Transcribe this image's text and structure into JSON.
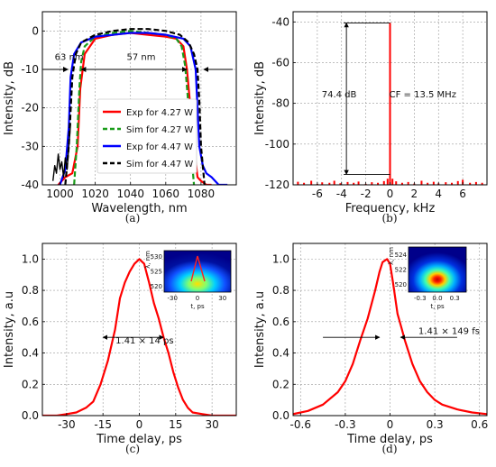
{
  "chart_data": [
    {
      "panel_label": "(a)",
      "type": "line",
      "xlabel": "Wavelength, nm",
      "ylabel": "Intensity, dB",
      "xlim": [
        990,
        1100
      ],
      "ylim": [
        -40,
        5
      ],
      "xticks": [
        1000,
        1020,
        1040,
        1060,
        1080
      ],
      "yticks": [
        -40,
        -30,
        -20,
        -10,
        0
      ],
      "grid": true,
      "legend": "center",
      "series": [
        {
          "name": "Exp for 4.27 W",
          "color": "#ff0000",
          "dash": "solid",
          "x": [
            999,
            1003,
            1007,
            1010,
            1011.5,
            1014,
            1020,
            1030,
            1040,
            1050,
            1060,
            1066,
            1070,
            1072,
            1074,
            1076,
            1078,
            1080,
            1083,
            1086
          ],
          "y": [
            -40,
            -38,
            -37,
            -30,
            -15,
            -6,
            -2,
            -1,
            -0.5,
            -1,
            -1.5,
            -2,
            -4,
            -10,
            -20,
            -30,
            -38,
            -39,
            -40,
            -40
          ]
        },
        {
          "name": "Sim for 4.27 W",
          "color": "#1a9c1a",
          "dash": "dashed",
          "x": [
            1008,
            1009.5,
            1011,
            1012,
            1014,
            1020,
            1030,
            1040,
            1050,
            1060,
            1066,
            1069,
            1071,
            1073,
            1074.5,
            1076
          ],
          "y": [
            -40,
            -30,
            -15,
            -8,
            -4,
            -1.5,
            -0.5,
            0,
            -0.5,
            -1,
            -2,
            -4,
            -9,
            -20,
            -32,
            -40
          ]
        },
        {
          "name": "Exp for 4.47 W",
          "color": "#0000ff",
          "dash": "solid",
          "x": [
            1000,
            1003,
            1005,
            1006,
            1008,
            1012,
            1020,
            1030,
            1040,
            1050,
            1060,
            1070,
            1074,
            1077,
            1078,
            1079,
            1081,
            1083,
            1086,
            1090,
            1095
          ],
          "y": [
            -40,
            -36,
            -25,
            -12,
            -6,
            -3,
            -1.5,
            -1,
            -0.5,
            -0.5,
            -1,
            -2,
            -4,
            -10,
            -20,
            -30,
            -35,
            -37,
            -38,
            -40,
            -40
          ]
        },
        {
          "name": "Sim for 4.47 W",
          "color": "#000000",
          "dash": "dashed",
          "x": [
            1003,
            1005,
            1007,
            1009,
            1012,
            1020,
            1030,
            1040,
            1050,
            1060,
            1068,
            1073,
            1076,
            1078,
            1079,
            1080,
            1082
          ],
          "y": [
            -40,
            -30,
            -12,
            -6,
            -3,
            -1,
            0,
            0.5,
            0.5,
            0,
            -1,
            -3,
            -6,
            -10,
            -18,
            -30,
            -40
          ]
        },
        {
          "name": "",
          "color": "#000000",
          "dash": "noise",
          "x": [
            996,
            997,
            998,
            999,
            1000,
            1001,
            1002,
            1003,
            1004,
            1005,
            1006
          ],
          "y": [
            -39,
            -35,
            -37,
            -32,
            -36,
            -34,
            -38,
            -33,
            -36,
            -30,
            -24
          ]
        }
      ],
      "annotations": [
        {
          "text": "63 nm",
          "x": 997,
          "y": -7.5
        },
        {
          "text": "57 nm",
          "x": 1046,
          "y": -7.5
        }
      ]
    },
    {
      "panel_label": "(b)",
      "type": "line",
      "xlabel": "Frequency, kHz",
      "ylabel": "Intensity, dB",
      "xlim": [
        -8,
        8
      ],
      "ylim": [
        -120,
        -35
      ],
      "xticks": [
        -6,
        -4,
        -2,
        0,
        2,
        4,
        6
      ],
      "yticks": [
        -120,
        -100,
        -80,
        -60,
        -40
      ],
      "grid": true,
      "series": [
        {
          "name": "",
          "color": "#ff0000",
          "dash": "spike",
          "x": [
            -7.6,
            -7.1,
            -6.5,
            -6.0,
            -5.6,
            -5.0,
            -4.6,
            -4.1,
            -3.5,
            -3.0,
            -2.6,
            -2.0,
            -1.5,
            -1.0,
            -0.5,
            -0.2,
            0,
            0.2,
            0.5,
            1.0,
            1.5,
            2.0,
            2.6,
            3.1,
            3.6,
            4.0,
            4.6,
            5.1,
            5.6,
            6.0,
            6.6,
            7.1,
            7.6
          ],
          "y": [
            -118.5,
            -119,
            -118,
            -119.5,
            -118.8,
            -119,
            -118,
            -119.2,
            -118.6,
            -119,
            -118.4,
            -119.5,
            -118.7,
            -119,
            -118.2,
            -117,
            -40.5,
            -117,
            -118.3,
            -119,
            -118.6,
            -119.4,
            -118,
            -119,
            -118.5,
            -119.3,
            -118.7,
            -119,
            -118.2,
            -117.5,
            -119,
            -118.6,
            -119
          ]
        }
      ],
      "annotations": [
        {
          "text": "74.4 dB",
          "x": -4.2,
          "y": -77
        },
        {
          "text": "CF = 13.5 MHz",
          "x": 2.7,
          "y": -77
        }
      ]
    },
    {
      "panel_label": "(c)",
      "type": "line",
      "xlabel": "Time delay, ps",
      "ylabel": "Intensity, a.u",
      "xlim": [
        -40,
        40
      ],
      "ylim": [
        0,
        1.1
      ],
      "xticks": [
        -30,
        -15,
        0,
        15,
        30
      ],
      "yticks": [
        0.0,
        0.2,
        0.4,
        0.6,
        0.8,
        1.0
      ],
      "grid": true,
      "series": [
        {
          "name": "",
          "color": "#ff0000",
          "x": [
            -40,
            -34,
            -30,
            -26,
            -22,
            -19,
            -16,
            -13,
            -10,
            -8,
            -6,
            -4,
            -2,
            0,
            2,
            4,
            6,
            8,
            10,
            12,
            14,
            16,
            18,
            20,
            22,
            26,
            30,
            40
          ],
          "y": [
            0.0,
            0.0,
            0.01,
            0.02,
            0.05,
            0.09,
            0.2,
            0.35,
            0.55,
            0.75,
            0.85,
            0.92,
            0.97,
            1.0,
            0.97,
            0.85,
            0.72,
            0.62,
            0.5,
            0.4,
            0.28,
            0.18,
            0.1,
            0.05,
            0.02,
            0.01,
            0.0,
            0.0
          ]
        }
      ],
      "annotations": [
        {
          "text": "1.41 × 14 ps",
          "x": -9.8,
          "y": 0.46
        }
      ],
      "inset": {
        "type": "heatmap",
        "xlabel": "t, ps",
        "ylabel": "λ, nm",
        "xticks": [
          -30,
          0,
          30
        ],
        "yticks": [
          520,
          525,
          530
        ]
      }
    },
    {
      "panel_label": "(d)",
      "type": "line",
      "xlabel": "Time delay, ps",
      "ylabel": "Intensity, a.u",
      "xlim": [
        -0.65,
        0.65
      ],
      "ylim": [
        0,
        1.1
      ],
      "xticks": [
        -0.6,
        -0.3,
        0.0,
        0.3,
        0.6
      ],
      "yticks": [
        0.0,
        0.2,
        0.4,
        0.6,
        0.8,
        1.0
      ],
      "grid": true,
      "series": [
        {
          "name": "",
          "color": "#ff0000",
          "x": [
            -0.65,
            -0.55,
            -0.45,
            -0.35,
            -0.3,
            -0.25,
            -0.2,
            -0.15,
            -0.1,
            -0.07,
            -0.05,
            -0.02,
            0.0,
            0.02,
            0.05,
            0.08,
            0.1,
            0.15,
            0.2,
            0.25,
            0.3,
            0.35,
            0.45,
            0.55,
            0.65
          ],
          "y": [
            0.01,
            0.03,
            0.07,
            0.15,
            0.22,
            0.33,
            0.48,
            0.62,
            0.8,
            0.92,
            0.98,
            1.0,
            0.97,
            0.85,
            0.65,
            0.55,
            0.48,
            0.33,
            0.22,
            0.15,
            0.1,
            0.07,
            0.04,
            0.02,
            0.01
          ]
        }
      ],
      "annotations": [
        {
          "text": "1.41 × 149 fs",
          "x": 0.19,
          "y": 0.52
        }
      ],
      "inset": {
        "type": "heatmap",
        "xlabel": "t, ps",
        "ylabel": "λ, nm",
        "xticks": [
          -0.3,
          0.0,
          0.3
        ],
        "yticks": [
          520,
          522,
          524
        ]
      }
    }
  ]
}
